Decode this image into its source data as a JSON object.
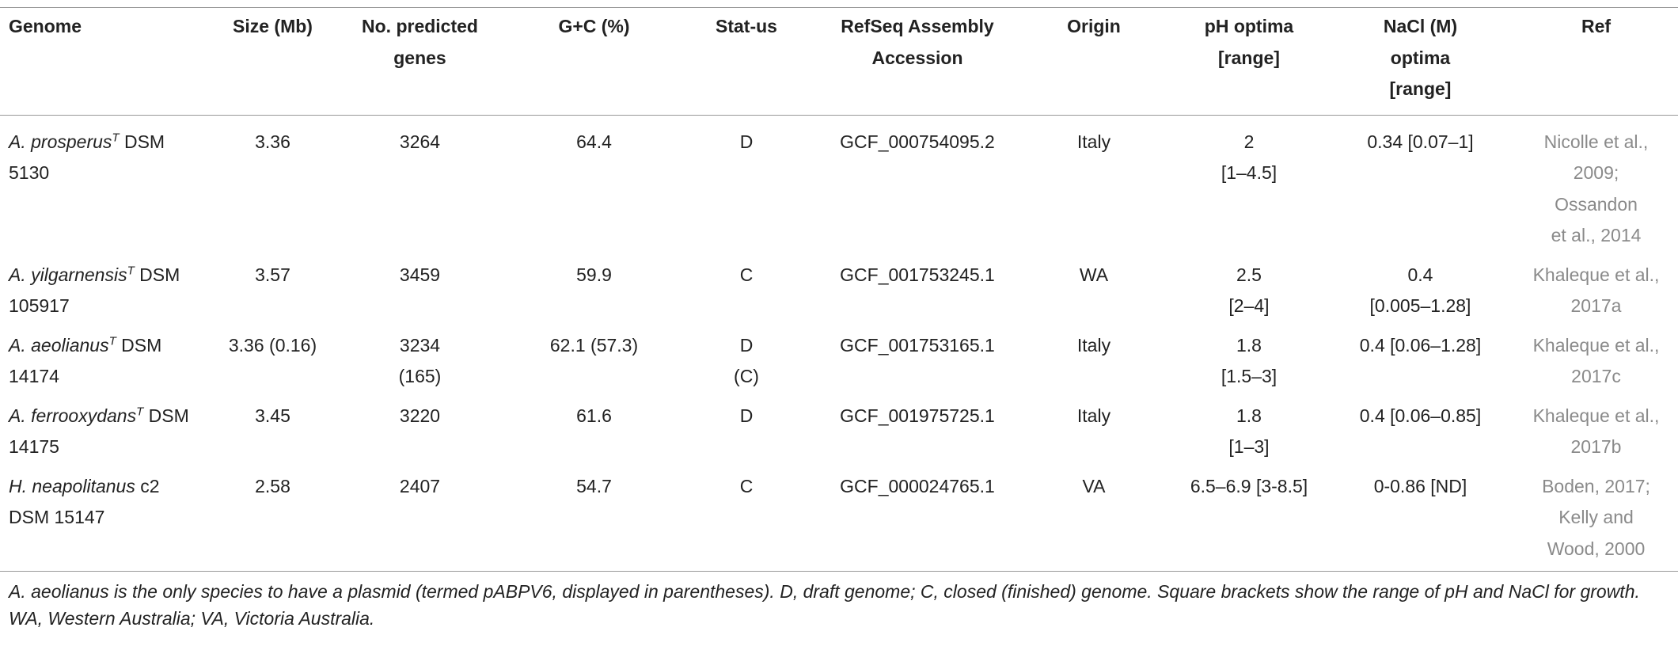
{
  "table": {
    "headers": [
      [
        "Genome"
      ],
      [
        "Size (Mb)"
      ],
      [
        "No. predicted",
        "genes"
      ],
      [
        "G+C (%)"
      ],
      [
        "Stat-us"
      ],
      [
        "RefSeq Assembly",
        "Accession"
      ],
      [
        "Origin"
      ],
      [
        "pH optima",
        "[range]"
      ],
      [
        "NaCl (M)",
        "optima",
        "[range]"
      ],
      [
        "Ref"
      ]
    ],
    "rows": [
      {
        "genome": {
          "species": "A. prosperus",
          "superscript": "T",
          "strain": "DSM 5130"
        },
        "cells": [
          [
            "3.36"
          ],
          [
            "3264"
          ],
          [
            "64.4"
          ],
          [
            "D"
          ],
          [
            "GCF_000754095.2"
          ],
          [
            "Italy"
          ],
          [
            "2",
            "[1–4.5]"
          ],
          [
            "0.34 [0.07–1]"
          ],
          [
            "Nicolle et al.,",
            "2009;",
            "Ossandon",
            "et al., 2014"
          ]
        ]
      },
      {
        "genome": {
          "species": "A. yilgarnensis",
          "superscript": "T",
          "strain": "DSM 105917"
        },
        "cells": [
          [
            "3.57"
          ],
          [
            "3459"
          ],
          [
            "59.9"
          ],
          [
            "C"
          ],
          [
            "GCF_001753245.1"
          ],
          [
            "WA"
          ],
          [
            "2.5",
            "[2–4]"
          ],
          [
            "0.4",
            "[0.005–1.28]"
          ],
          [
            "Khaleque et al.,",
            "2017a"
          ]
        ]
      },
      {
        "genome": {
          "species": "A. aeolianus",
          "superscript": "T",
          "strain": "DSM 14174"
        },
        "cells": [
          [
            "3.36 (0.16)"
          ],
          [
            "3234",
            "(165)"
          ],
          [
            "62.1 (57.3)"
          ],
          [
            "D",
            "(C)"
          ],
          [
            "GCF_001753165.1"
          ],
          [
            "Italy"
          ],
          [
            "1.8",
            "[1.5–3]"
          ],
          [
            "0.4 [0.06–1.28]"
          ],
          [
            "Khaleque et al.,",
            "2017c"
          ]
        ]
      },
      {
        "genome": {
          "species": "A. ferrooxydans",
          "superscript": "T",
          "strain": "DSM 14175"
        },
        "cells": [
          [
            "3.45"
          ],
          [
            "3220"
          ],
          [
            "61.6"
          ],
          [
            "D"
          ],
          [
            "GCF_001975725.1"
          ],
          [
            "Italy"
          ],
          [
            "1.8",
            "[1–3]"
          ],
          [
            "0.4 [0.06–0.85]"
          ],
          [
            "Khaleque et al.,",
            "2017b"
          ]
        ]
      },
      {
        "genome": {
          "species": "H. neapolitanus",
          "strain": "c2 DSM 15147"
        },
        "cells": [
          [
            "2.58"
          ],
          [
            "2407"
          ],
          [
            "54.7"
          ],
          [
            "C"
          ],
          [
            "GCF_000024765.1"
          ],
          [
            "VA"
          ],
          [
            "6.5–6.9 [3-8.5]"
          ],
          [
            "0-0.86 [ND]"
          ],
          [
            "Boden, 2017;",
            "Kelly and",
            "Wood, 2000"
          ]
        ]
      }
    ],
    "footnote": "A. aeolianus is the only species to have a plasmid (termed pABPV6, displayed in parentheses). D, draft genome; C, closed (finished) genome. Square brackets show the range of pH and NaCl for growth. WA, Western Australia; VA, Victoria Australia."
  }
}
